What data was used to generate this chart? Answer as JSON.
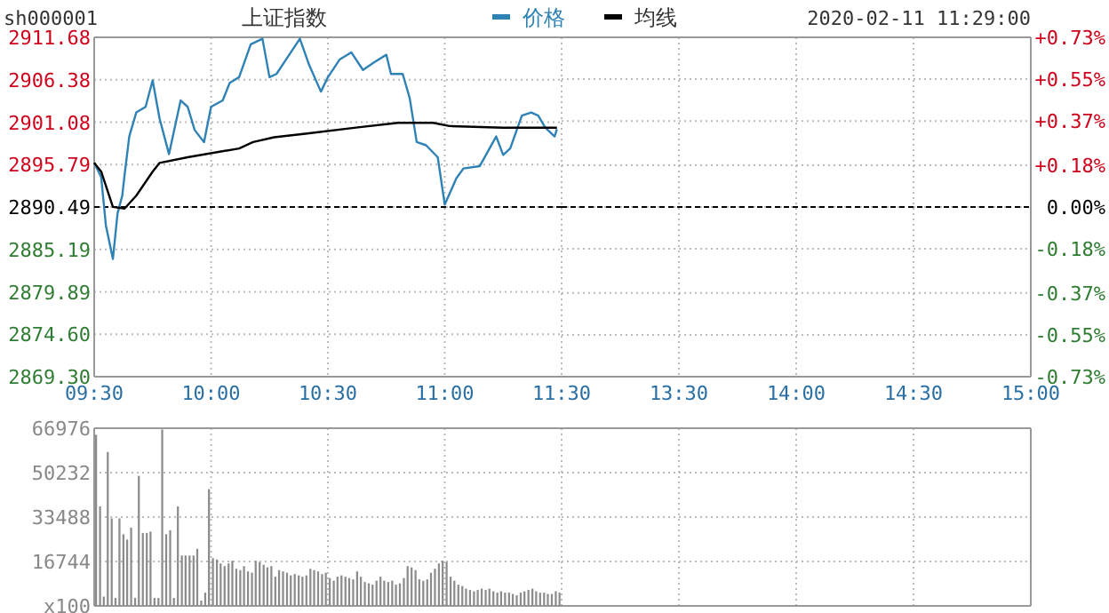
{
  "chart_data": [
    {
      "type": "line",
      "title": "上证指数",
      "subtitle": "sh000001",
      "annotations": [
        "2020-02-11 11:29:00"
      ],
      "legend": "top",
      "grid": true,
      "xlim": [
        9.5,
        11.5
      ],
      "xticks": [
        {
          "value": 9.5,
          "label": "09:30"
        },
        {
          "value": 10,
          "label": "10:00"
        },
        {
          "value": 10.5,
          "label": "10:30"
        },
        {
          "value": 11,
          "label": "11:00"
        },
        {
          "value": 11.5,
          "label": "11:30"
        }
      ],
      "ylim": [
        2869.3,
        2911.68
      ],
      "yticks": [
        {
          "value": 2869.3,
          "label": "2869.30"
        },
        {
          "value": 2874.6,
          "label": "2874.60"
        },
        {
          "value": 2879.89,
          "label": "2879.89"
        },
        {
          "value": 2885.19,
          "label": "2885.19"
        },
        {
          "value": 2890.49,
          "label": "2890.49"
        },
        {
          "value": 2895.79,
          "label": "2895.79"
        },
        {
          "value": 2901.08,
          "label": "2901.08"
        },
        {
          "value": 2906.38,
          "label": "2906.38"
        },
        {
          "value": 2911.68,
          "label": "2911.68"
        }
      ],
      "ref_lines": [
        {
          "axis": "y",
          "value": 2890.49,
          "color": "#000000",
          "line_style": "dashed"
        }
      ],
      "series": [
        {
          "name": "价格",
          "color": "#2f82b5",
          "x": [
            9.5,
            9.53,
            9.55,
            9.58,
            9.6,
            9.62,
            9.63,
            9.65,
            9.68,
            9.72,
            9.75,
            9.78,
            9.82,
            9.87,
            9.9,
            9.93,
            9.97,
            10,
            10.05,
            10.08,
            10.12,
            10.17,
            10.22,
            10.25,
            10.28,
            10.33,
            10.38,
            10.42,
            10.47,
            10.5,
            10.55,
            10.6,
            10.65,
            10.7,
            10.75,
            10.77,
            10.82,
            10.85,
            10.88,
            10.92,
            10.97,
            11,
            11.05,
            11.08,
            11.15,
            11.22,
            11.25,
            11.28,
            11.33,
            11.37,
            11.4,
            11.43,
            11.47,
            11.48
          ],
          "values": [
            2896.0,
            2894.2,
            2888.2,
            2884.0,
            2889.7,
            2891.9,
            2894.5,
            2899.3,
            2902.3,
            2903.0,
            2906.3,
            2901.5,
            2897.1,
            2903.8,
            2903.0,
            2900.1,
            2898.6,
            2903.0,
            2903.8,
            2906.0,
            2906.7,
            2910.8,
            2911.5,
            2906.7,
            2907.1,
            2909.3,
            2911.5,
            2908.2,
            2904.9,
            2906.7,
            2908.9,
            2909.8,
            2907.6,
            2908.6,
            2909.5,
            2907.1,
            2907.1,
            2904.1,
            2898.6,
            2898.2,
            2896.7,
            2890.8,
            2894.1,
            2895.3,
            2895.6,
            2899.3,
            2897.0,
            2897.8,
            2901.9,
            2902.3,
            2901.9,
            2900.4,
            2899.3,
            2900.2
          ]
        },
        {
          "name": "均线",
          "color": "#000000",
          "x": [
            9.5,
            9.53,
            9.58,
            9.63,
            9.68,
            9.75,
            9.78,
            9.9,
            10.12,
            10.18,
            10.27,
            10.42,
            10.62,
            10.8,
            10.95,
            11.02,
            11.25,
            11.48
          ],
          "values": [
            2896.0,
            2894.9,
            2890.5,
            2890.3,
            2891.9,
            2894.9,
            2896.0,
            2896.7,
            2897.8,
            2898.6,
            2899.2,
            2899.7,
            2900.4,
            2901.0,
            2901.0,
            2900.6,
            2900.4,
            2900.4
          ]
        }
      ]
    },
    {
      "type": "line",
      "grid": true,
      "xlim": [
        13,
        15
      ],
      "xticks": [
        {
          "value": 13.5,
          "label": "13:30"
        },
        {
          "value": 14,
          "label": "14:00"
        },
        {
          "value": 14.5,
          "label": "14:30"
        },
        {
          "value": 15,
          "label": "15:00"
        }
      ],
      "y2lim": [
        -0.73,
        0.73
      ],
      "y2ticks": [
        {
          "value": -0.73,
          "label": "-0.73%"
        },
        {
          "value": -0.55,
          "label": "-0.55%"
        },
        {
          "value": -0.37,
          "label": "-0.37%"
        },
        {
          "value": -0.18,
          "label": "-0.18%"
        },
        {
          "value": 0,
          "label": "0.00%"
        },
        {
          "value": 0.18,
          "label": "+0.18%"
        },
        {
          "value": 0.37,
          "label": "+0.37%"
        },
        {
          "value": 0.55,
          "label": "+0.55%"
        },
        {
          "value": 0.73,
          "label": "+0.73%"
        }
      ],
      "ref_lines": [
        {
          "axis": "y2",
          "value": 0,
          "color": "#000000",
          "line_style": "dashed"
        }
      ]
    },
    {
      "type": "bar",
      "grid": true,
      "tick_labels": "y",
      "xlim": [
        9.5,
        11.5
      ],
      "xticks": [
        9.5,
        10,
        10.5,
        11,
        11.5
      ],
      "ylim": [
        0,
        66976
      ],
      "yticks": [
        {
          "value": 0,
          "label": "x100"
        },
        16744,
        33488,
        50232,
        66976
      ],
      "series": [
        {
          "color": "#8c8c8c",
          "x": [
            9.5,
            9.517,
            9.533,
            9.55,
            9.567,
            9.583,
            9.6,
            9.617,
            9.633,
            9.65,
            9.667,
            9.683,
            9.7,
            9.717,
            9.733,
            9.75,
            9.767,
            9.783,
            9.8,
            9.817,
            9.833,
            9.85,
            9.867,
            9.883,
            9.9,
            9.917,
            9.933,
            9.95,
            9.967,
            9.983,
            10,
            10.017,
            10.033,
            10.05,
            10.067,
            10.083,
            10.1,
            10.117,
            10.133,
            10.15,
            10.167,
            10.183,
            10.2,
            10.217,
            10.233,
            10.25,
            10.267,
            10.283,
            10.3,
            10.317,
            10.333,
            10.35,
            10.367,
            10.383,
            10.4,
            10.417,
            10.433,
            10.45,
            10.467,
            10.483,
            10.5,
            10.517,
            10.533,
            10.55,
            10.567,
            10.583,
            10.6,
            10.617,
            10.633,
            10.65,
            10.667,
            10.683,
            10.7,
            10.717,
            10.733,
            10.75,
            10.767,
            10.783,
            10.8,
            10.817,
            10.833,
            10.85,
            10.867,
            10.883,
            10.9,
            10.917,
            10.933,
            10.95,
            10.967,
            10.983,
            11,
            11.017,
            11.033,
            11.05,
            11.067,
            11.083,
            11.1,
            11.117,
            11.133,
            11.15,
            11.167,
            11.183,
            11.2,
            11.217,
            11.233,
            11.25,
            11.267,
            11.283,
            11.3,
            11.317,
            11.333,
            11.35,
            11.367,
            11.383,
            11.4,
            11.417,
            11.433,
            11.45,
            11.467,
            11.483
          ],
          "values": [
            64500,
            37500,
            3500,
            58000,
            33000,
            3000,
            33000,
            27000,
            25000,
            29500,
            3000,
            49000,
            27500,
            27500,
            28000,
            3000,
            3000,
            66500,
            27000,
            28500,
            3000,
            37500,
            19000,
            19000,
            19000,
            19000,
            21500,
            2000,
            5000,
            44000,
            18000,
            17500,
            16000,
            15000,
            16000,
            17000,
            14000,
            13500,
            15000,
            13000,
            12500,
            17000,
            16500,
            15500,
            14500,
            15000,
            11000,
            13500,
            13000,
            12500,
            11500,
            12000,
            11500,
            11000,
            11500,
            14000,
            13500,
            13000,
            12000,
            12500,
            10500,
            9500,
            11000,
            11500,
            11000,
            10500,
            10000,
            13000,
            11000,
            9000,
            8500,
            8000,
            9500,
            11000,
            9500,
            9000,
            9500,
            8000,
            8500,
            10500,
            15000,
            14500,
            13500,
            10000,
            9500,
            10000,
            12500,
            14000,
            16000,
            17000,
            16500,
            11000,
            9500,
            8000,
            7500,
            6500,
            6000,
            5500,
            6000,
            6500,
            6000,
            6500,
            5500,
            5000,
            5500,
            5000,
            5000,
            4500,
            4000,
            5000,
            5500,
            6000,
            6500,
            5500,
            5000,
            5000,
            4500,
            4500,
            5500,
            5000
          ]
        }
      ]
    },
    {
      "type": "bar",
      "grid": true,
      "tick_labels": false,
      "xlim": [
        13,
        15
      ],
      "xticks": [
        13.5,
        14,
        14.5,
        15
      ],
      "ylim": [
        0,
        66976
      ],
      "yticks": [
        0,
        16744,
        33488,
        50232,
        66976
      ]
    }
  ]
}
